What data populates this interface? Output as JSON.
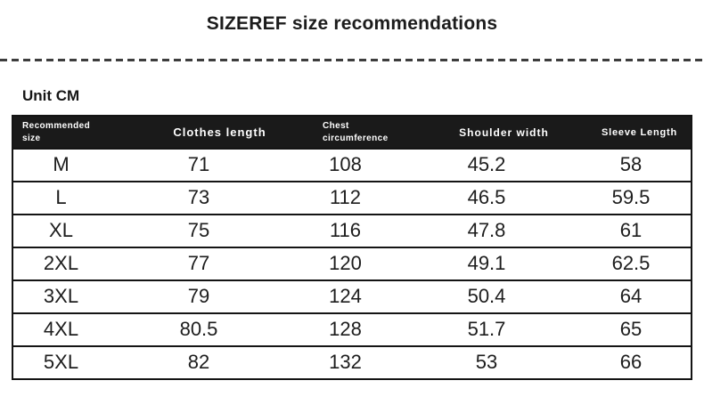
{
  "title": "SIZEREF size recommendations",
  "unit_label": "Unit CM",
  "colors": {
    "header_bg": "#1a1a1a",
    "header_text": "#ffffff",
    "border": "#141414",
    "body_text": "#1d1d1d",
    "divider_dash": "#3d3d3d",
    "background": "#ffffff"
  },
  "table": {
    "fields": [
      "size",
      "clothes_length",
      "chest_circumference",
      "shoulder_width",
      "sleeve_length"
    ],
    "columns": {
      "size": "Recommended\nsize",
      "clothes_length": "Clothes length",
      "chest_circumference": "Chest\ncircumference",
      "shoulder_width": "Shoulder width",
      "sleeve_length": "Sleeve Length"
    },
    "rows": [
      {
        "size": "M",
        "clothes_length": "71",
        "chest_circumference": "108",
        "shoulder_width": "45.2",
        "sleeve_length": "58"
      },
      {
        "size": "L",
        "clothes_length": "73",
        "chest_circumference": "112",
        "shoulder_width": "46.5",
        "sleeve_length": "59.5"
      },
      {
        "size": "XL",
        "clothes_length": "75",
        "chest_circumference": "116",
        "shoulder_width": "47.8",
        "sleeve_length": "61"
      },
      {
        "size": "2XL",
        "clothes_length": "77",
        "chest_circumference": "120",
        "shoulder_width": "49.1",
        "sleeve_length": "62.5"
      },
      {
        "size": "3XL",
        "clothes_length": "79",
        "chest_circumference": "124",
        "shoulder_width": "50.4",
        "sleeve_length": "64"
      },
      {
        "size": "4XL",
        "clothes_length": "80.5",
        "chest_circumference": "128",
        "shoulder_width": "51.7",
        "sleeve_length": "65"
      },
      {
        "size": "5XL",
        "clothes_length": "82",
        "chest_circumference": "132",
        "shoulder_width": "53",
        "sleeve_length": "66"
      }
    ]
  }
}
